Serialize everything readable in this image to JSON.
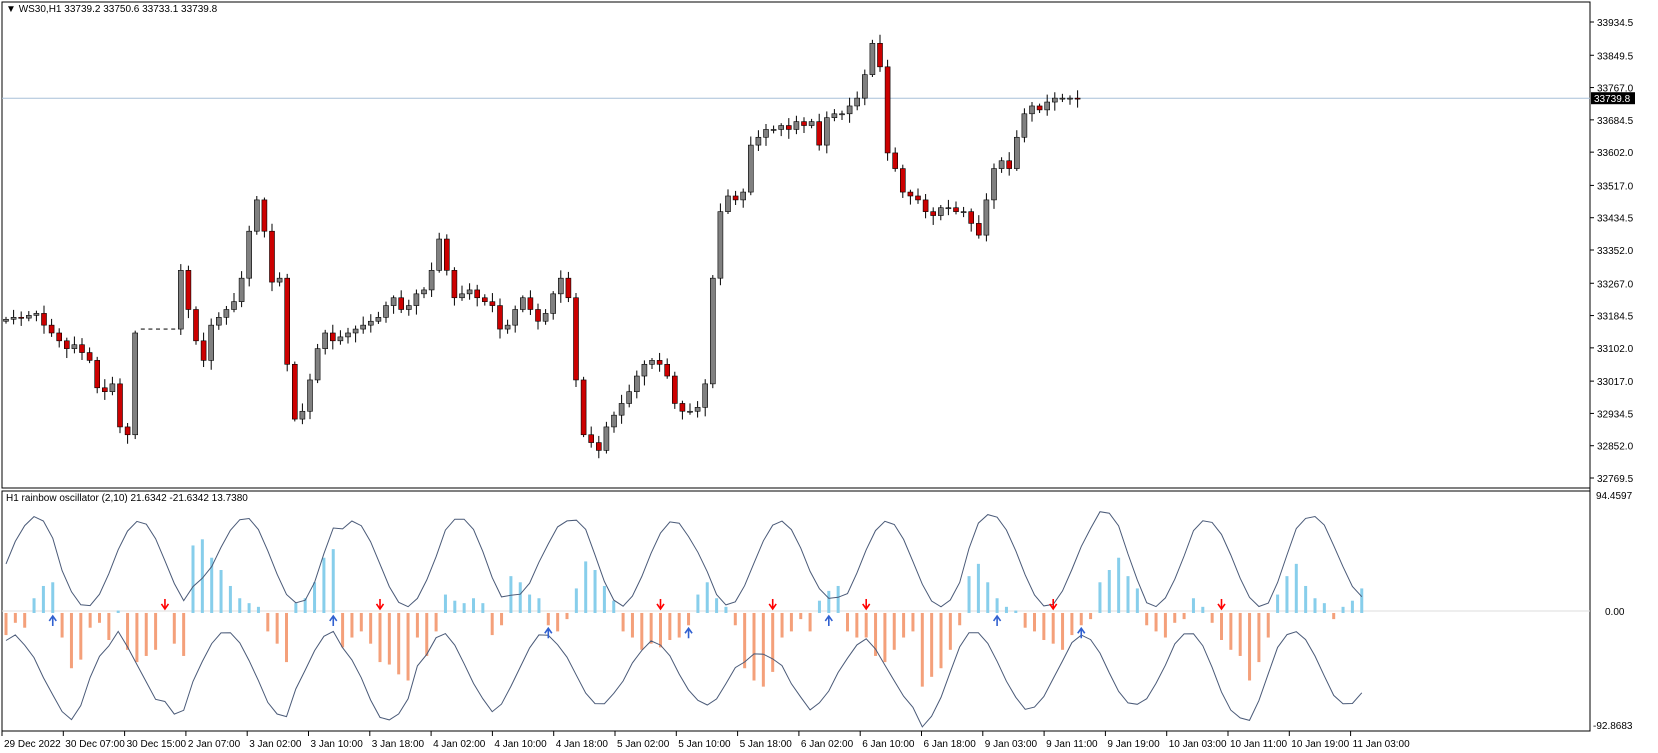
{
  "main_panel": {
    "symbol": "WS30,H1",
    "ohlc": "33739.2 33750.6 33733.1 33739.8",
    "current_price": "33739.8",
    "price_ticks": [
      "33934.5",
      "33849.5",
      "33767.0",
      "33684.5",
      "33602.0",
      "33517.0",
      "33434.5",
      "33352.0",
      "33267.0",
      "33184.5",
      "33102.0",
      "33017.0",
      "32934.5",
      "32852.0",
      "32769.5"
    ]
  },
  "indicator_panel": {
    "title": "H1 rainbow oscillator (2,10) 21.6342 -21.6342 13.7380",
    "max_label": "94.4597",
    "zero_label": "0.00",
    "min_label": "-92.8683"
  },
  "time_axis": {
    "labels": [
      "29 Dec 2022",
      "30 Dec 07:00",
      "30 Dec 15:00",
      "2 Jan 07:00",
      "3 Jan 02:00",
      "3 Jan 10:00",
      "3 Jan 18:00",
      "4 Jan 02:00",
      "4 Jan 10:00",
      "4 Jan 18:00",
      "5 Jan 02:00",
      "5 Jan 10:00",
      "5 Jan 18:00",
      "6 Jan 02:00",
      "6 Jan 10:00",
      "6 Jan 18:00",
      "9 Jan 03:00",
      "9 Jan 11:00",
      "9 Jan 19:00",
      "10 Jan 03:00",
      "10 Jan 11:00",
      "10 Jan 19:00",
      "11 Jan 03:00"
    ]
  },
  "colors": {
    "bull_candle": "#808080",
    "bear_candle": "#cc0000",
    "current_price_line": "#a8c0d8",
    "histogram_positive": "#87ceeb",
    "histogram_negative": "#f4a07a",
    "band_line": "#4a5a78",
    "down_arrow": "#ff0000",
    "up_arrow": "#3060d0"
  },
  "chart_data": [
    {
      "type": "candlestick",
      "ylim": [
        32769.5,
        33934.5
      ],
      "close_series": [
        33175,
        33180,
        33178,
        33185,
        33190,
        33160,
        33140,
        33120,
        33100,
        33110,
        33090,
        33070,
        33000,
        32990,
        33010,
        32900,
        32880,
        33140,
        33150,
        33150,
        33150,
        33150,
        33150,
        33300,
        33200,
        33120,
        33070,
        33160,
        33180,
        33200,
        33220,
        33280,
        33400,
        33480,
        33400,
        33270,
        33280,
        33060,
        32920,
        32940,
        33020,
        33100,
        33140,
        33120,
        33130,
        33140,
        33150,
        33160,
        33170,
        33180,
        33210,
        33230,
        33200,
        33210,
        33240,
        33250,
        33300,
        33380,
        33300,
        33230,
        33240,
        33250,
        33230,
        33220,
        33210,
        33150,
        33160,
        33200,
        33230,
        33200,
        33170,
        33190,
        33240,
        33280,
        33230,
        33020,
        32880,
        32860,
        32840,
        32900,
        32930,
        32960,
        32990,
        33030,
        33060,
        33070,
        33060,
        33030,
        32960,
        32940,
        32940,
        32950,
        33010,
        33280,
        33450,
        33490,
        33480,
        33500,
        33620,
        33640,
        33660,
        33660,
        33670,
        33660,
        33680,
        33670,
        33680,
        33620,
        33690,
        33700,
        33700,
        33720,
        33740,
        33800,
        33880,
        33820,
        33600,
        33560,
        33500,
        33490,
        33480,
        33450,
        33440,
        33460,
        33460,
        33450,
        33450,
        33420,
        33390,
        33480,
        33560,
        33580,
        33560,
        33640,
        33700,
        33720,
        33710,
        33730,
        33740,
        33740,
        33740,
        33739.8
      ]
    },
    {
      "type": "bar",
      "name": "H1 rainbow oscillator",
      "ylim": [
        -92.8683,
        94.4597
      ],
      "values": [
        -18,
        -8,
        -12,
        12,
        22,
        25,
        -20,
        -45,
        -38,
        -12,
        -8,
        -22,
        2,
        -30,
        -40,
        -35,
        -30,
        0,
        -25,
        -35,
        55,
        60,
        45,
        35,
        22,
        12,
        8,
        5,
        -15,
        -25,
        -40,
        8,
        12,
        25,
        45,
        52,
        -28,
        -20,
        -15,
        -25,
        -40,
        -42,
        -50,
        -55,
        -20,
        -35,
        -15,
        15,
        10,
        8,
        12,
        8,
        -18,
        -10,
        30,
        25,
        15,
        12,
        -10,
        -15,
        -5,
        20,
        42,
        35,
        22,
        10,
        -15,
        -20,
        -30,
        -25,
        -28,
        -22,
        -20,
        -10,
        15,
        25,
        12,
        5,
        -10,
        -45,
        -55,
        -60,
        -48,
        -20,
        -15,
        -5,
        -15,
        10,
        18,
        22,
        -15,
        -20,
        -20,
        -35,
        -40,
        -30,
        -20,
        -15,
        -60,
        -52,
        -45,
        -30,
        -10,
        30,
        40,
        25,
        12,
        5,
        2,
        -12,
        -15,
        -22,
        -25,
        -30,
        -18,
        -10,
        -5,
        25,
        35,
        45,
        30,
        20,
        -10,
        -15,
        -20,
        -8,
        -5,
        12,
        5,
        -8,
        -22,
        -30,
        -35,
        -55,
        -40,
        -20,
        15,
        30,
        40,
        22,
        12,
        8,
        -5,
        5,
        10,
        20
      ],
      "upper_band_label": "21.6342",
      "lower_band_label": "-21.6342",
      "signal_value": "13.7380"
    }
  ]
}
